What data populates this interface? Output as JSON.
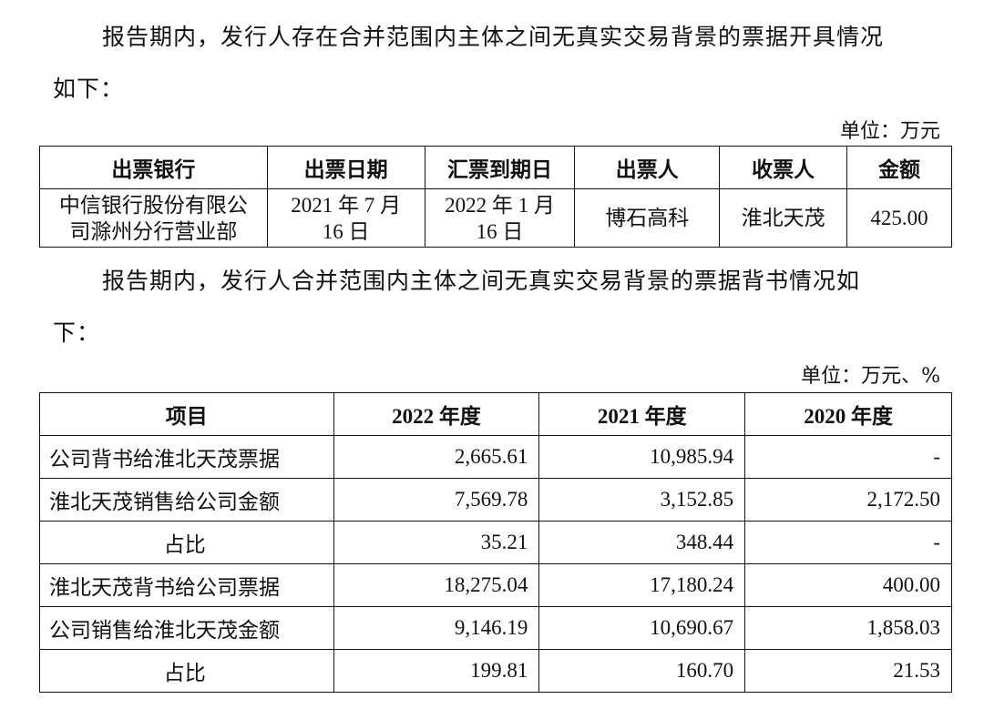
{
  "para1": {
    "line1": "报告期内，发行人存在合并范围内主体之间无真实交易背景的票据开具情况",
    "line2": "如下："
  },
  "unit1": "单位：万元",
  "table1": {
    "headers": [
      "出票银行",
      "出票日期",
      "汇票到期日",
      "出票人",
      "收票人",
      "金额"
    ],
    "row": {
      "bank_line1": "中信银行股份有限公",
      "bank_line2": "司滁州分行营业部",
      "issue_line1": "2021 年 7 月",
      "issue_line2": "16 日",
      "due_line1": "2022 年 1 月",
      "due_line2": "16 日",
      "drawer": "博石高科",
      "payee": "淮北天茂",
      "amount": "425.00"
    }
  },
  "para2": {
    "line1": "报告期内，发行人合并范围内主体之间无真实交易背景的票据背书情况如",
    "line2": "下："
  },
  "unit2": "单位：万元、%",
  "table2": {
    "headers": [
      "项目",
      "2022 年度",
      "2021 年度",
      "2020 年度"
    ],
    "rows": [
      {
        "label": "公司背书给淮北天茂票据",
        "v2022": "2,665.61",
        "v2021": "10,985.94",
        "v2020": "-",
        "center": false
      },
      {
        "label": "淮北天茂销售给公司金额",
        "v2022": "7,569.78",
        "v2021": "3,152.85",
        "v2020": "2,172.50",
        "center": false
      },
      {
        "label": "占比",
        "v2022": "35.21",
        "v2021": "348.44",
        "v2020": "-",
        "center": true
      },
      {
        "label": "淮北天茂背书给公司票据",
        "v2022": "18,275.04",
        "v2021": "17,180.24",
        "v2020": "400.00",
        "center": false
      },
      {
        "label": "公司销售给淮北天茂金额",
        "v2022": "9,146.19",
        "v2021": "10,690.67",
        "v2020": "1,858.03",
        "center": false
      },
      {
        "label": "占比",
        "v2022": "199.81",
        "v2021": "160.70",
        "v2020": "21.53",
        "center": true
      }
    ]
  }
}
